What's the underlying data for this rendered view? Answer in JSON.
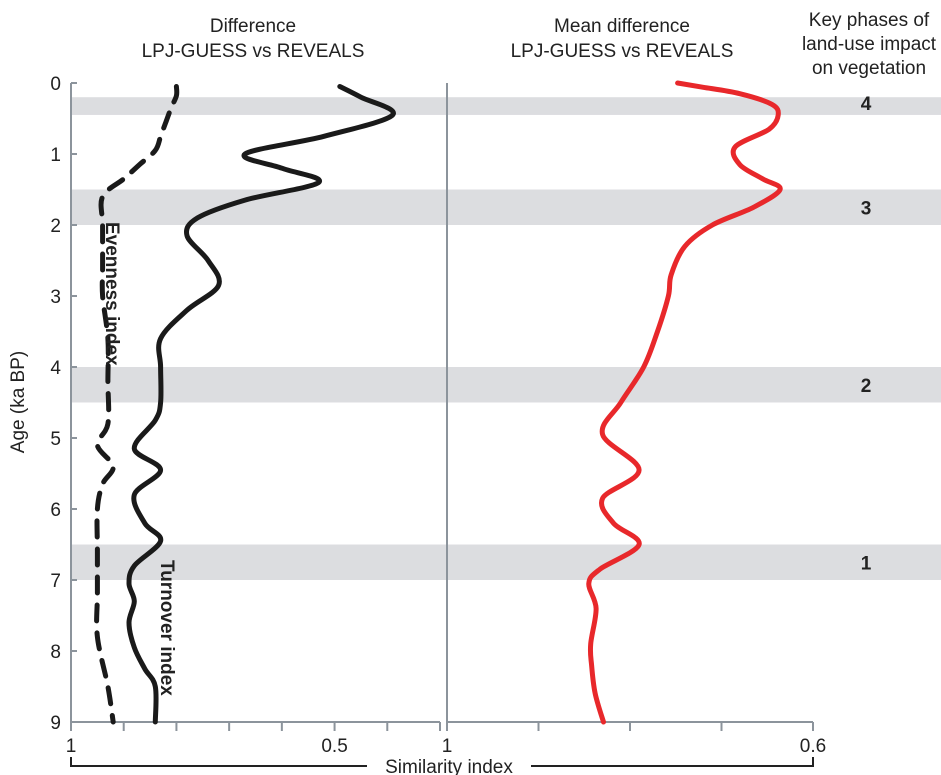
{
  "chart_data": [
    {
      "type": "line",
      "title": "Difference\nLPJ-GUESS vs REVEALS",
      "ylabel": "Age (ka BP)",
      "ylim": [
        0,
        9
      ],
      "y_inverted": true,
      "yticks": [
        "0",
        "1",
        "2",
        "3",
        "4",
        "5",
        "6",
        "7",
        "8",
        "9"
      ],
      "xlim": [
        1,
        0.3
      ],
      "xtick_labels": [
        {
          "value": 1,
          "label": "1"
        },
        {
          "value": 0.5,
          "label": "0.5"
        }
      ],
      "shaded_bands": [
        [
          0.2,
          0.45
        ],
        [
          1.5,
          2.0
        ],
        [
          4.0,
          4.5
        ],
        [
          6.5,
          7.0
        ]
      ],
      "series": [
        {
          "name": "Evenness index",
          "style": "dashed",
          "color": "#1a1a1a",
          "points": [
            {
              "age": 0.05,
              "x": 0.8
            },
            {
              "age": 0.18,
              "x": 0.8
            },
            {
              "age": 0.35,
              "x": 0.81
            },
            {
              "age": 0.55,
              "x": 0.82
            },
            {
              "age": 0.75,
              "x": 0.83
            },
            {
              "age": 0.95,
              "x": 0.84
            },
            {
              "age": 1.15,
              "x": 0.87
            },
            {
              "age": 1.35,
              "x": 0.9
            },
            {
              "age": 1.6,
              "x": 0.94
            },
            {
              "age": 2.0,
              "x": 0.94
            },
            {
              "age": 2.6,
              "x": 0.94
            },
            {
              "age": 3.0,
              "x": 0.94
            },
            {
              "age": 3.6,
              "x": 0.93
            },
            {
              "age": 4.2,
              "x": 0.93
            },
            {
              "age": 4.8,
              "x": 0.93
            },
            {
              "age": 5.1,
              "x": 0.95
            },
            {
              "age": 5.4,
              "x": 0.92
            },
            {
              "age": 5.65,
              "x": 0.94
            },
            {
              "age": 6.0,
              "x": 0.95
            },
            {
              "age": 6.6,
              "x": 0.95
            },
            {
              "age": 7.2,
              "x": 0.95
            },
            {
              "age": 7.8,
              "x": 0.95
            },
            {
              "age": 8.5,
              "x": 0.93
            },
            {
              "age": 9.0,
              "x": 0.92
            }
          ]
        },
        {
          "name": "Turnover index",
          "style": "solid",
          "color": "#1a1a1a",
          "points": [
            {
              "age": 0.05,
              "x": 0.49
            },
            {
              "age": 0.2,
              "x": 0.45
            },
            {
              "age": 0.45,
              "x": 0.39
            },
            {
              "age": 0.75,
              "x": 0.52
            },
            {
              "age": 1.0,
              "x": 0.67
            },
            {
              "age": 1.2,
              "x": 0.6
            },
            {
              "age": 1.4,
              "x": 0.53
            },
            {
              "age": 1.65,
              "x": 0.67
            },
            {
              "age": 1.9,
              "x": 0.76
            },
            {
              "age": 2.15,
              "x": 0.78
            },
            {
              "age": 2.5,
              "x": 0.74
            },
            {
              "age": 2.85,
              "x": 0.72
            },
            {
              "age": 3.2,
              "x": 0.78
            },
            {
              "age": 3.6,
              "x": 0.83
            },
            {
              "age": 4.0,
              "x": 0.83
            },
            {
              "age": 4.5,
              "x": 0.83
            },
            {
              "age": 4.75,
              "x": 0.84
            },
            {
              "age": 5.15,
              "x": 0.88
            },
            {
              "age": 5.45,
              "x": 0.83
            },
            {
              "age": 5.8,
              "x": 0.88
            },
            {
              "age": 6.2,
              "x": 0.86
            },
            {
              "age": 6.45,
              "x": 0.83
            },
            {
              "age": 6.8,
              "x": 0.88
            },
            {
              "age": 7.05,
              "x": 0.89
            },
            {
              "age": 7.3,
              "x": 0.88
            },
            {
              "age": 7.6,
              "x": 0.89
            },
            {
              "age": 7.95,
              "x": 0.88
            },
            {
              "age": 8.25,
              "x": 0.86
            },
            {
              "age": 8.5,
              "x": 0.84
            },
            {
              "age": 9.0,
              "x": 0.84
            }
          ]
        }
      ]
    },
    {
      "type": "line",
      "title": "Mean difference\nLPJ-GUESS vs REVEALS",
      "ylim": [
        0,
        9
      ],
      "y_inverted": true,
      "xlim": [
        1,
        0.6
      ],
      "xtick_labels": [
        {
          "value": 1,
          "label": "1"
        },
        {
          "value": 0.6,
          "label": "0.6"
        }
      ],
      "shaded_bands": [
        [
          0.2,
          0.45
        ],
        [
          1.5,
          2.0
        ],
        [
          4.0,
          4.5
        ],
        [
          6.5,
          7.0
        ]
      ],
      "series": [
        {
          "name": "",
          "style": "solid",
          "color": "#e8282b",
          "points": [
            {
              "age": 0.0,
              "x": 0.748
            },
            {
              "age": 0.06,
              "x": 0.72
            },
            {
              "age": 0.15,
              "x": 0.68
            },
            {
              "age": 0.3,
              "x": 0.645
            },
            {
              "age": 0.45,
              "x": 0.638
            },
            {
              "age": 0.65,
              "x": 0.648
            },
            {
              "age": 0.9,
              "x": 0.685
            },
            {
              "age": 1.15,
              "x": 0.68
            },
            {
              "age": 1.35,
              "x": 0.655
            },
            {
              "age": 1.5,
              "x": 0.636
            },
            {
              "age": 1.75,
              "x": 0.665
            },
            {
              "age": 2.0,
              "x": 0.71
            },
            {
              "age": 2.3,
              "x": 0.74
            },
            {
              "age": 2.7,
              "x": 0.755
            },
            {
              "age": 3.0,
              "x": 0.758
            },
            {
              "age": 3.5,
              "x": 0.77
            },
            {
              "age": 4.0,
              "x": 0.785
            },
            {
              "age": 4.5,
              "x": 0.81
            },
            {
              "age": 4.95,
              "x": 0.83
            },
            {
              "age": 5.45,
              "x": 0.79
            },
            {
              "age": 5.85,
              "x": 0.83
            },
            {
              "age": 6.2,
              "x": 0.818
            },
            {
              "age": 6.5,
              "x": 0.79
            },
            {
              "age": 6.85,
              "x": 0.833
            },
            {
              "age": 7.05,
              "x": 0.845
            },
            {
              "age": 7.4,
              "x": 0.837
            },
            {
              "age": 7.9,
              "x": 0.843
            },
            {
              "age": 8.2,
              "x": 0.842
            },
            {
              "age": 8.6,
              "x": 0.838
            },
            {
              "age": 9.0,
              "x": 0.829
            }
          ]
        }
      ]
    }
  ],
  "shared_xlabel": "Similarity index",
  "phase_panel": {
    "title": "Key phases of\nland-use impact\non vegetation",
    "phases": [
      {
        "label": "4",
        "age": 0.28
      },
      {
        "label": "3",
        "age": 1.75
      },
      {
        "label": "2",
        "age": 4.25
      },
      {
        "label": "1",
        "age": 6.75
      }
    ]
  }
}
